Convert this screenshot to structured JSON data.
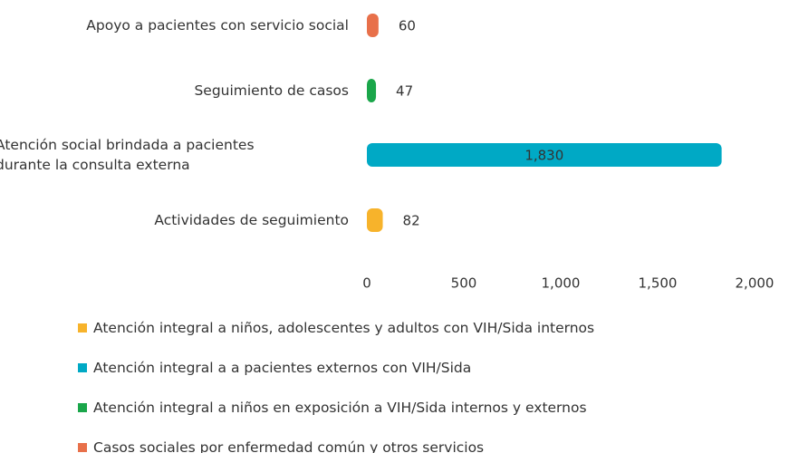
{
  "chart_data": {
    "type": "hbar",
    "categories": [
      "Apoyo a pacientes con servicio social",
      "Seguimiento de casos",
      "Atención social brindada a pacientes\ndurante la consulta externa",
      "Actividades de seguimiento"
    ],
    "series": [
      {
        "name": "Atención integral a niños, adolescentes y adultos con VIH/Sida internos",
        "color": "#f7b32b",
        "values": [
          null,
          null,
          null,
          82
        ]
      },
      {
        "name": "Atención integral a a pacientes externos con VIH/Sida",
        "color": "#00a9c5",
        "values": [
          null,
          null,
          1830,
          null
        ],
        "value_labels": [
          null,
          null,
          "1,830",
          null
        ]
      },
      {
        "name": "Atención integral a niños en exposición a VIH/Sida internos y externos",
        "color": "#1aa64a",
        "values": [
          null,
          47,
          null,
          null
        ]
      },
      {
        "name": "Casos sociales por enfermedad común y otros servicios",
        "color": "#e8704a",
        "values": [
          60,
          null,
          null,
          null
        ]
      }
    ],
    "xlim": [
      0,
      2000
    ],
    "xticks": [
      0,
      500,
      {
        "value": 1000,
        "label": "1,000"
      },
      {
        "value": 1500,
        "label": "1,500"
      },
      {
        "value": 2000,
        "label": "2,000"
      }
    ],
    "grid": false
  }
}
